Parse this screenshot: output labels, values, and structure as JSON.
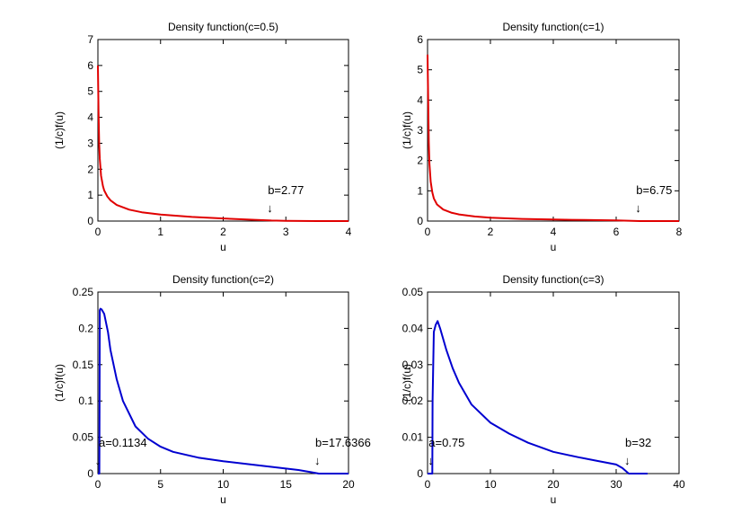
{
  "chart_data": [
    {
      "type": "line",
      "title": "Density function(c=0.5)",
      "xlabel": "u",
      "ylabel": "(1/c)f(u)",
      "xlim": [
        0,
        4
      ],
      "ylim": [
        0,
        7
      ],
      "xticks": [
        0,
        1,
        2,
        3,
        4
      ],
      "yticks": [
        0,
        1,
        2,
        3,
        4,
        5,
        6,
        7
      ],
      "color": "#e00000",
      "series": [
        {
          "name": "c=0.5",
          "x": [
            0.0,
            0.01,
            0.02,
            0.03,
            0.05,
            0.08,
            0.1,
            0.15,
            0.2,
            0.3,
            0.5,
            0.7,
            1.0,
            1.5,
            2.0,
            2.5,
            2.77,
            3.0,
            3.5,
            4.0
          ],
          "y": [
            6.0,
            4.2,
            3.0,
            2.4,
            1.75,
            1.35,
            1.18,
            0.95,
            0.8,
            0.62,
            0.44,
            0.34,
            0.25,
            0.16,
            0.1,
            0.05,
            0.02,
            0.01,
            0.0,
            0.0
          ]
        }
      ],
      "annotations": [
        {
          "text": "b=2.77",
          "x": 2.77,
          "arrow": "↓"
        }
      ]
    },
    {
      "type": "line",
      "title": "Density function(c=1)",
      "xlabel": "u",
      "ylabel": "(1/c)f(u)",
      "xlim": [
        0,
        8
      ],
      "ylim": [
        0,
        6
      ],
      "xticks": [
        0,
        2,
        4,
        6,
        8
      ],
      "yticks": [
        0,
        1,
        2,
        3,
        4,
        5,
        6
      ],
      "color": "#e00000",
      "series": [
        {
          "name": "c=1",
          "x": [
            0.0,
            0.02,
            0.04,
            0.06,
            0.1,
            0.15,
            0.2,
            0.3,
            0.5,
            0.75,
            1.0,
            1.5,
            2.0,
            3.0,
            4.0,
            5.0,
            6.0,
            6.75,
            7.0,
            8.0
          ],
          "y": [
            5.5,
            4.0,
            2.6,
            1.9,
            1.3,
            0.95,
            0.75,
            0.55,
            0.38,
            0.28,
            0.22,
            0.15,
            0.11,
            0.07,
            0.05,
            0.035,
            0.02,
            0.0,
            0.0,
            0.0
          ]
        }
      ],
      "annotations": [
        {
          "text": "b=6.75",
          "x": 6.75,
          "arrow": "↓"
        }
      ]
    },
    {
      "type": "line",
      "title": "Density function(c=2)",
      "xlabel": "u",
      "ylabel": "(1/c)f(u)",
      "xlim": [
        0,
        20
      ],
      "ylim": [
        0,
        0.25
      ],
      "xticks": [
        0,
        5,
        10,
        15,
        20
      ],
      "yticks": [
        0,
        0.05,
        0.1,
        0.15,
        0.2,
        0.25
      ],
      "color": "#0000d0",
      "series": [
        {
          "name": "c=2",
          "x": [
            0.0,
            0.1134,
            0.15,
            0.2,
            0.3,
            0.5,
            0.8,
            1.0,
            1.5,
            2.0,
            3.0,
            4.0,
            5.0,
            6.0,
            8.0,
            10.0,
            12.0,
            14.0,
            16.0,
            17.0,
            17.6366,
            18.0,
            20.0
          ],
          "y": [
            0.0,
            0.0,
            0.225,
            0.227,
            0.226,
            0.22,
            0.195,
            0.17,
            0.13,
            0.1,
            0.065,
            0.048,
            0.037,
            0.03,
            0.022,
            0.017,
            0.013,
            0.009,
            0.005,
            0.002,
            0.0,
            0.0,
            0.0
          ]
        }
      ],
      "annotations": [
        {
          "text": "a=0.1134",
          "x": 0.1134,
          "arrow": "↓"
        },
        {
          "text": "b=17.6366",
          "x": 17.6366,
          "arrow": "↓"
        }
      ]
    },
    {
      "type": "line",
      "title": "Density function(c=3)",
      "xlabel": "u",
      "ylabel": "(1/c)f(u)",
      "xlim": [
        0,
        40
      ],
      "ylim": [
        0,
        0.05
      ],
      "xticks": [
        0,
        10,
        20,
        30,
        40
      ],
      "yticks": [
        0,
        0.01,
        0.02,
        0.03,
        0.04,
        0.05
      ],
      "color": "#0000d0",
      "series": [
        {
          "name": "c=3",
          "x": [
            0.0,
            0.75,
            0.8,
            1.0,
            1.3,
            1.6,
            2.0,
            3.0,
            4.0,
            5.0,
            7.0,
            10.0,
            13.0,
            16.0,
            20.0,
            24.0,
            27.0,
            30.0,
            31.0,
            32.0,
            33.0,
            35.0
          ],
          "y": [
            0.0,
            0.0,
            0.02,
            0.039,
            0.041,
            0.042,
            0.04,
            0.034,
            0.029,
            0.025,
            0.019,
            0.014,
            0.011,
            0.0085,
            0.006,
            0.0045,
            0.0035,
            0.0025,
            0.0015,
            0.0,
            0.0,
            0.0
          ]
        }
      ],
      "annotations": [
        {
          "text": "a=0.75",
          "x": 0.75,
          "arrow": "↓"
        },
        {
          "text": "b=32",
          "x": 32,
          "arrow": "↓"
        }
      ]
    }
  ]
}
